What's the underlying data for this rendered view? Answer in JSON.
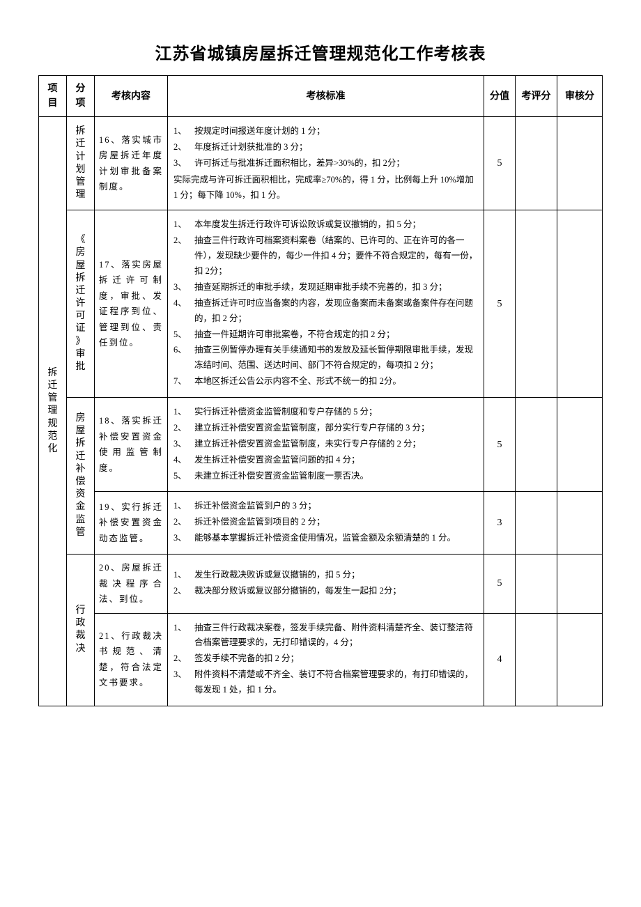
{
  "title": "江苏省城镇房屋拆迁管理规范化工作考核表",
  "headers": {
    "project": "项目",
    "subcat": "分项",
    "content": "考核内容",
    "standard": "考核标准",
    "score": "分值",
    "eval": "考评分",
    "audit": "审核分"
  },
  "project_label": "拆迁管理规范化",
  "rows": [
    {
      "subcat": "拆迁计划管理",
      "subcat_rowspan": 1,
      "content": "16、落实城市房屋拆迁年度计划审批备案制度。",
      "standard_items": [
        "按规定时间报送年度计划的 1 分；",
        "年度拆迁计划获批准的 3 分；",
        "许可拆迁与批准拆迁面积相比，差异>30%的，扣 2分；"
      ],
      "standard_tail": "实际完成与许可拆迁面积相比，完成率≥70%的，得 1 分，比例每上升 10%增加 1 分；每下降 10%，扣 1 分。",
      "score": "5"
    },
    {
      "subcat": "《房屋拆迁许可证》审批",
      "subcat_rowspan": 1,
      "content": "17、落实房屋拆迁许可制度，审批、发证程序到位、管理到位、责任到位。",
      "standard_items": [
        "本年度发生拆迁行政许可诉讼败诉或复议撤销的，扣 5 分；",
        "抽查三件行政许可档案资料案卷（结案的、已许可的、正在许可的各一件），发现缺少要件的，每少一件扣 4 分；要件不符合规定的，每有一份，扣 2分；",
        "抽查延期拆迁的审批手续，发现延期审批手续不完善的，扣 3 分；",
        "抽查拆迁许可时应当备案的内容，发现应备案而未备案或备案件存在问题的，扣 2 分；",
        "抽查一件延期许可审批案卷，不符合规定的扣 2 分；",
        "抽查三例暂停办理有关手续通知书的发放及延长暂停期限审批手续，发现冻结时间、范围、送达时间、部门不符合规定的，每项扣 2 分；",
        "本地区拆迁公告公示内容不全、形式不统一的扣 2分。"
      ],
      "standard_tail": "",
      "score": "5"
    },
    {
      "subcat": "房屋拆迁补偿资金监管",
      "subcat_rowspan": 2,
      "content": "18、落实拆迁补偿安置资金使用监管制度。",
      "standard_items": [
        "实行拆迁补偿资金监管制度和专户存储的 5 分；",
        "建立拆迁补偿安置资金监管制度，部分实行专户存储的 3 分；",
        "建立拆迁补偿安置资金监管制度，未实行专户存储的 2 分；",
        "发生拆迁补偿安置资金监管问题的扣 4 分；",
        "未建立拆迁补偿安置资金监管制度一票否决。"
      ],
      "standard_tail": "",
      "score": "5"
    },
    {
      "subcat": "",
      "subcat_rowspan": 0,
      "content": "19、实行拆迁补偿安置资金动态监管。",
      "standard_items": [
        "拆迁补偿资金监管到户的 3 分；",
        "拆迁补偿资金监管到项目的 2 分；",
        "能够基本掌握拆迁补偿资金使用情况，监管金额及余额清楚的 1 分。"
      ],
      "standard_tail": "",
      "score": "3"
    },
    {
      "subcat": "行政裁决",
      "subcat_rowspan": 2,
      "content": "20、房屋拆迁裁决程序合法、到位。",
      "standard_items": [
        "发生行政裁决败诉或复议撤销的，扣 5 分；",
        "裁决部分败诉或复议部分撤销的，每发生一起扣 2分；"
      ],
      "standard_tail": "",
      "score": "5"
    },
    {
      "subcat": "",
      "subcat_rowspan": 0,
      "content": "21、行政裁决书规范、清楚，符合法定文书要求。",
      "standard_items": [
        "抽查三件行政裁决案卷，签发手续完备、附件资料清楚齐全、装订整洁符合档案管理要求的，无打印错误的，4 分；",
        "签发手续不完备的扣 2 分；",
        "附件资料不清楚或不齐全、装订不符合档案管理要求的，有打印错误的，每发现 1 处，扣 1 分。"
      ],
      "standard_tail": "",
      "score": "4"
    }
  ]
}
